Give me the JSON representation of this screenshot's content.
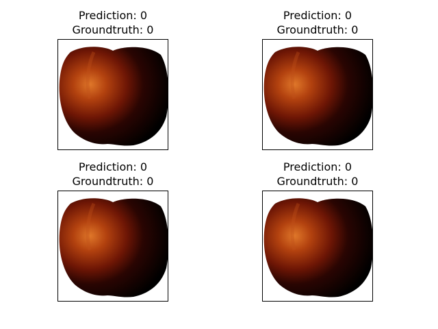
{
  "figure": {
    "panels": [
      {
        "prediction_label": "Prediction: 0",
        "groundtruth_label": "Groundtruth: 0",
        "image": "red-apple"
      },
      {
        "prediction_label": "Prediction: 0",
        "groundtruth_label": "Groundtruth: 0",
        "image": "red-apple"
      },
      {
        "prediction_label": "Prediction: 0",
        "groundtruth_label": "Groundtruth: 0",
        "image": "red-apple"
      },
      {
        "prediction_label": "Prediction: 0",
        "groundtruth_label": "Groundtruth: 0",
        "image": "red-apple"
      }
    ]
  },
  "colors": {
    "apple_dark": "#000000",
    "apple_red": "#7a1a05",
    "apple_highlight": "#e0782a",
    "frame": "#000000"
  }
}
